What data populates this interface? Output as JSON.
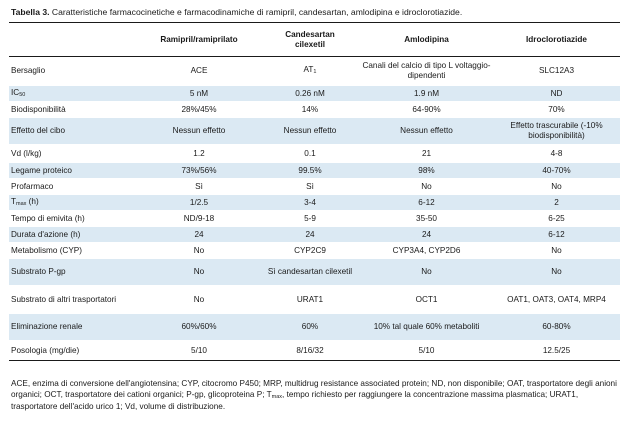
{
  "caption": {
    "label": "Tabella 3.",
    "text": "Caratteristiche farmacocinetiche e farmacodinamiche di ramipril, candesartan, amlodipina e idroclorotiazide."
  },
  "table": {
    "headers": [
      "",
      "Ramipril/ramiprilato",
      "Candesartan cilexetil",
      "Amlodipina",
      "Idroclorotiazide"
    ],
    "rows": [
      {
        "label": "Bersaglio",
        "cells": [
          "ACE",
          "AT1",
          "Canali del calcio di tipo L voltaggio-dipendenti",
          "SLC12A3"
        ]
      },
      {
        "label": "IC50",
        "cells": [
          "5 nM",
          "0.26 nM",
          "1.9 nM",
          "ND"
        ]
      },
      {
        "label": "Biodisponibilità",
        "cells": [
          "28%/45%",
          "14%",
          "64-90%",
          "70%"
        ]
      },
      {
        "label": "Effetto del cibo",
        "cells": [
          "Nessun effetto",
          "Nessun effetto",
          "Nessun effetto",
          "Effetto trascurabile (-10% biodisponibilità)"
        ]
      },
      {
        "label": "Vd (l/kg)",
        "cells": [
          "1.2",
          "0.1",
          "21",
          "4-8"
        ]
      },
      {
        "label": "Legame proteico",
        "cells": [
          "73%/56%",
          "99.5%",
          "98%",
          "40-70%"
        ]
      },
      {
        "label": "Profarmaco",
        "cells": [
          "Sì",
          "Sì",
          "No",
          "No"
        ]
      },
      {
        "label": "Tmax (h)",
        "cells": [
          "1/2.5",
          "3-4",
          "6-12",
          "2"
        ]
      },
      {
        "label": "Tempo di emivita (h)",
        "cells": [
          "ND/9-18",
          "5-9",
          "35-50",
          "6-25"
        ]
      },
      {
        "label": "Durata d'azione (h)",
        "cells": [
          "24",
          "24",
          "24",
          "6-12"
        ]
      },
      {
        "label": "Metabolismo (CYP)",
        "cells": [
          "No",
          "CYP2C9",
          "CYP3A4, CYP2D6",
          "No"
        ]
      },
      {
        "label": "Substrato P-gp",
        "cells": [
          "No",
          "Sì candesartan cilexetil",
          "No",
          "No"
        ]
      },
      {
        "label": "Substrato di altri trasportatori",
        "cells": [
          "No",
          "URAT1",
          "OCT1",
          "OAT1, OAT3, OAT4, MRP4"
        ]
      },
      {
        "label": "Eliminazione renale",
        "cells": [
          "60%/60%",
          "60%",
          "10% tal quale 60% metaboliti",
          "60-80%"
        ]
      },
      {
        "label": "Posologia (mg/die)",
        "cells": [
          "5/10",
          "8/16/32",
          "5/10",
          "12.5/25"
        ]
      }
    ]
  },
  "footnote": "ACE, enzima di conversione dell'angiotensina; CYP, citocromo P450; MRP, multidrug resistance associated protein; ND, non disponibile; OAT, trasportatore degli anioni organici; OCT, trasportatore dei cationi organici; P-gp, glicoproteina P; Tmax, tempo richiesto per raggiungere la concentrazione massima plasmatica; URAT1, trasportatore dell'acido urico 1; Vd, volume di distribuzione."
}
